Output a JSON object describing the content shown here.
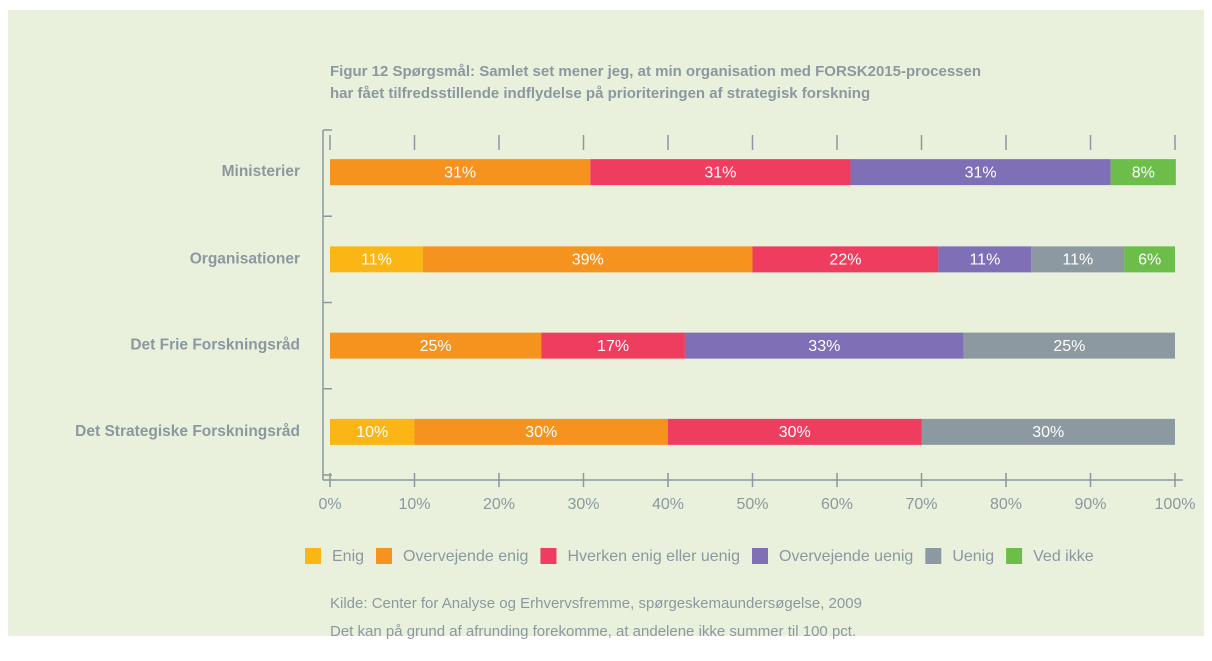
{
  "chart_data": {
    "type": "stacked_barh",
    "title": [
      "Figur 12 Spørgsmål: Samlet set mener jeg, at min organisation med FORSK2015-processen",
      "har fået tilfredsstillende indflydelse på prioriteringen af strategisk forskning"
    ],
    "categories": [
      "Ministerier",
      "Organisationer",
      "Det Frie Forskningsråd",
      "Det Strategiske Forskningsråd"
    ],
    "series": [
      {
        "name": "Enig",
        "color": "#fbb616",
        "values": [
          null,
          11,
          null,
          10
        ],
        "value_labels": [
          null,
          "11%",
          null,
          "10%"
        ]
      },
      {
        "name": "Overvejende enig",
        "color": "#f6921e",
        "values": [
          30.8,
          39,
          25,
          30
        ],
        "value_labels": [
          "31%",
          "39%",
          "25%",
          "30%"
        ]
      },
      {
        "name": "Hverken enig eller uenig",
        "color": "#ef3d5f",
        "values": [
          30.8,
          22,
          17,
          30
        ],
        "value_labels": [
          "31%",
          "22%",
          "17%",
          "30%"
        ]
      },
      {
        "name": "Overvejende uenig",
        "color": "#7f6fb6",
        "values": [
          30.8,
          11,
          33,
          null
        ],
        "value_labels": [
          "31%",
          "11%",
          "33%",
          null
        ]
      },
      {
        "name": "Uenig",
        "color": "#8d99a1",
        "values": [
          null,
          11,
          25,
          30
        ],
        "value_labels": [
          null,
          "11%",
          "25%",
          "30%"
        ]
      },
      {
        "name": "Ved ikke",
        "color": "#6cbd4a",
        "values": [
          7.7,
          6,
          null,
          null
        ],
        "value_labels": [
          "8%",
          "6%",
          null,
          null
        ]
      }
    ],
    "xlim": [
      0,
      100
    ],
    "xticks": [
      {
        "value": 0,
        "label": "0%"
      },
      {
        "value": 10,
        "label": "10%"
      },
      {
        "value": 20,
        "label": "20%"
      },
      {
        "value": 30,
        "label": "30%"
      },
      {
        "value": 40,
        "label": "40%"
      },
      {
        "value": 50,
        "label": "50%"
      },
      {
        "value": 60,
        "label": "60%"
      },
      {
        "value": 70,
        "label": "70%"
      },
      {
        "value": 80,
        "label": "80%"
      },
      {
        "value": 90,
        "label": "90%"
      },
      {
        "value": 100,
        "label": "100%"
      }
    ],
    "legend": "bottom",
    "notes": [
      "Kilde: Center for Analyse og Erhvervsfremme, spørgeskemaundersøgelse, 2009",
      "Det kan på grund af afrunding forekomme, at andelene ikke summer til 100 pct."
    ]
  }
}
